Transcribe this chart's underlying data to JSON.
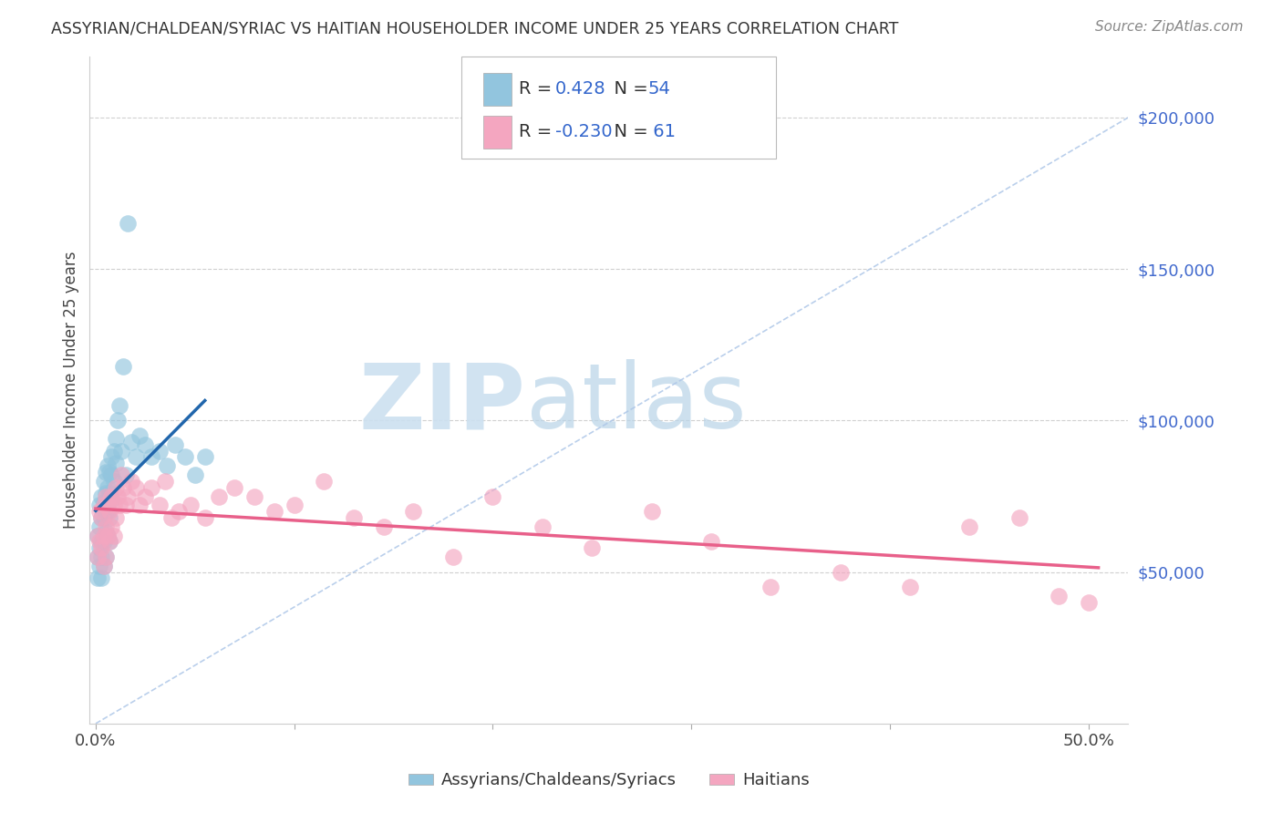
{
  "title": "ASSYRIAN/CHALDEAN/SYRIAC VS HAITIAN HOUSEHOLDER INCOME UNDER 25 YEARS CORRELATION CHART",
  "source": "Source: ZipAtlas.com",
  "ylabel": "Householder Income Under 25 years",
  "ylim": [
    0,
    220000
  ],
  "xlim": [
    -0.003,
    0.52
  ],
  "blue_color": "#92c5de",
  "pink_color": "#f4a6c0",
  "blue_line_color": "#2166ac",
  "pink_line_color": "#e8608a",
  "dashed_line_color": "#aec7e8",
  "watermark_zip": "ZIP",
  "watermark_atlas": "atlas",
  "legend_text_blue": "0.428",
  "legend_text_n1": "54",
  "legend_text_pink": "-0.230",
  "legend_text_n2": "61",
  "ass_x": [
    0.001,
    0.001,
    0.001,
    0.002,
    0.002,
    0.002,
    0.002,
    0.003,
    0.003,
    0.003,
    0.003,
    0.003,
    0.004,
    0.004,
    0.004,
    0.004,
    0.004,
    0.005,
    0.005,
    0.005,
    0.005,
    0.005,
    0.006,
    0.006,
    0.006,
    0.006,
    0.007,
    0.007,
    0.007,
    0.007,
    0.008,
    0.008,
    0.008,
    0.009,
    0.009,
    0.01,
    0.01,
    0.011,
    0.012,
    0.013,
    0.014,
    0.015,
    0.016,
    0.018,
    0.02,
    0.022,
    0.025,
    0.028,
    0.032,
    0.036,
    0.04,
    0.045,
    0.05,
    0.055
  ],
  "ass_y": [
    55000,
    62000,
    48000,
    72000,
    65000,
    58000,
    52000,
    75000,
    68000,
    60000,
    55000,
    48000,
    80000,
    73000,
    68000,
    60000,
    52000,
    83000,
    76000,
    70000,
    63000,
    55000,
    85000,
    78000,
    70000,
    62000,
    83000,
    76000,
    68000,
    60000,
    88000,
    82000,
    74000,
    90000,
    80000,
    94000,
    86000,
    100000,
    105000,
    90000,
    118000,
    82000,
    165000,
    93000,
    88000,
    95000,
    92000,
    88000,
    90000,
    85000,
    92000,
    88000,
    82000,
    88000
  ],
  "hai_x": [
    0.001,
    0.001,
    0.002,
    0.002,
    0.003,
    0.003,
    0.004,
    0.004,
    0.004,
    0.005,
    0.005,
    0.005,
    0.006,
    0.006,
    0.007,
    0.007,
    0.008,
    0.008,
    0.009,
    0.009,
    0.01,
    0.01,
    0.011,
    0.012,
    0.013,
    0.014,
    0.015,
    0.016,
    0.018,
    0.02,
    0.022,
    0.025,
    0.028,
    0.032,
    0.035,
    0.038,
    0.042,
    0.048,
    0.055,
    0.062,
    0.07,
    0.08,
    0.09,
    0.1,
    0.115,
    0.13,
    0.145,
    0.16,
    0.18,
    0.2,
    0.225,
    0.25,
    0.28,
    0.31,
    0.34,
    0.375,
    0.41,
    0.44,
    0.465,
    0.485,
    0.5
  ],
  "hai_y": [
    62000,
    55000,
    70000,
    60000,
    68000,
    58000,
    72000,
    62000,
    52000,
    75000,
    65000,
    55000,
    72000,
    62000,
    70000,
    60000,
    75000,
    65000,
    72000,
    62000,
    78000,
    68000,
    75000,
    72000,
    82000,
    78000,
    72000,
    75000,
    80000,
    78000,
    72000,
    75000,
    78000,
    72000,
    80000,
    68000,
    70000,
    72000,
    68000,
    75000,
    78000,
    75000,
    70000,
    72000,
    80000,
    68000,
    65000,
    70000,
    55000,
    75000,
    65000,
    58000,
    70000,
    60000,
    45000,
    50000,
    45000,
    65000,
    68000,
    42000,
    40000
  ]
}
